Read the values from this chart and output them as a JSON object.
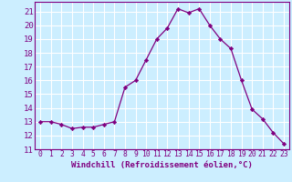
{
  "x": [
    0,
    1,
    2,
    3,
    4,
    5,
    6,
    7,
    8,
    9,
    10,
    11,
    12,
    13,
    14,
    15,
    16,
    17,
    18,
    19,
    20,
    21,
    22,
    23
  ],
  "y": [
    13.0,
    13.0,
    12.8,
    12.5,
    12.6,
    12.6,
    12.8,
    13.0,
    15.5,
    16.0,
    17.5,
    19.0,
    19.8,
    21.2,
    20.9,
    21.2,
    20.0,
    19.0,
    18.3,
    16.0,
    13.9,
    13.2,
    12.2,
    11.4
  ],
  "line_color": "#800080",
  "marker": "D",
  "marker_size": 2.2,
  "bg_color": "#cceeff",
  "grid_color": "#ffffff",
  "xlabel": "Windchill (Refroidissement éolien,°C)",
  "ylabel_ticks": [
    11,
    12,
    13,
    14,
    15,
    16,
    17,
    18,
    19,
    20,
    21
  ],
  "xtick_labels": [
    "0",
    "1",
    "2",
    "3",
    "4",
    "5",
    "6",
    "7",
    "8",
    "9",
    "10",
    "11",
    "12",
    "13",
    "14",
    "15",
    "16",
    "17",
    "18",
    "19",
    "20",
    "21",
    "22",
    "23"
  ],
  "xlim": [
    -0.5,
    23.5
  ],
  "ylim": [
    11,
    21.7
  ],
  "spine_color": "#800080",
  "tick_color": "#800080",
  "label_color": "#800080",
  "xlabel_fontsize": 6.5,
  "ytick_fontsize": 6.5,
  "xtick_fontsize": 5.8
}
